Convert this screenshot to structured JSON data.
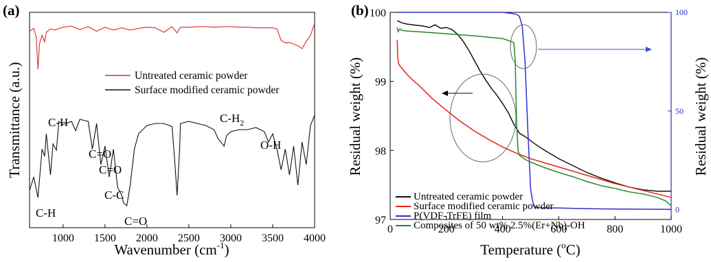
{
  "chart_data": [
    {
      "type": "line",
      "panel_label": "(a)",
      "xlabel_main": "Wavenumber (cm",
      "xlabel_sup": "-1",
      "xlabel_tail": ")",
      "ylabel": "Transmittance (a.u.)",
      "xlim": [
        600,
        4000
      ],
      "xticks": [
        "1000",
        "1500",
        "2000",
        "2500",
        "3000",
        "3500",
        "4000"
      ],
      "xtick_values": [
        1000,
        1500,
        2000,
        2500,
        3000,
        3500,
        4000
      ],
      "legend": [
        {
          "name": "Untreated ceramic powder",
          "color": "#e0282a"
        },
        {
          "name": "Surface modified ceramic powder",
          "color": "#111111"
        }
      ],
      "annotations": [
        {
          "text": "C-H",
          "x": 700
        },
        {
          "text": "C-H",
          "x": 880
        },
        {
          "text": "C=O",
          "x": 1390
        },
        {
          "text": "C=O",
          "x": 1500
        },
        {
          "text": "C-C",
          "x": 1620
        },
        {
          "text": "C=O",
          "x": 1760
        },
        {
          "text": "C-H",
          "x": 2920,
          "sub": "2"
        },
        {
          "text": "O-H",
          "x": 3450
        }
      ],
      "series": [
        {
          "name": "Untreated ceramic powder",
          "color": "#e0282a",
          "x": [
            600,
            650,
            680,
            700,
            720,
            750,
            780,
            800,
            850,
            900,
            1000,
            1100,
            1200,
            1300,
            1400,
            1500,
            1600,
            1700,
            1800,
            1900,
            2000,
            2100,
            2200,
            2300,
            2360,
            2400,
            2500,
            2600,
            2700,
            2800,
            2900,
            3000,
            3100,
            3200,
            3300,
            3400,
            3500,
            3550,
            3600,
            3650,
            3700,
            3800,
            3850,
            3900,
            3950,
            4000
          ],
          "y": [
            0.86,
            0.91,
            0.75,
            0.18,
            0.64,
            0.79,
            0.67,
            0.84,
            0.9,
            0.88,
            0.93,
            0.95,
            0.89,
            0.94,
            0.86,
            0.93,
            0.88,
            0.92,
            0.88,
            0.91,
            0.93,
            0.92,
            0.84,
            0.94,
            0.83,
            0.93,
            0.93,
            0.94,
            0.94,
            0.93,
            0.94,
            0.94,
            0.93,
            0.93,
            0.92,
            0.92,
            0.92,
            0.9,
            0.7,
            0.65,
            0.66,
            0.6,
            0.55,
            0.68,
            0.78,
            1.0
          ]
        },
        {
          "name": "Surface modified ceramic powder",
          "color": "#111111",
          "x": [
            600,
            650,
            700,
            750,
            780,
            800,
            850,
            880,
            920,
            950,
            1000,
            1100,
            1150,
            1200,
            1300,
            1350,
            1400,
            1450,
            1500,
            1550,
            1600,
            1650,
            1700,
            1720,
            1760,
            1800,
            1850,
            1900,
            2000,
            2100,
            2200,
            2300,
            2330,
            2360,
            2390,
            2400,
            2500,
            2600,
            2700,
            2800,
            2850,
            2920,
            2950,
            3000,
            3100,
            3200,
            3300,
            3400,
            3450,
            3500,
            3550,
            3600,
            3650,
            3700,
            3750,
            3800,
            3850,
            3900,
            3950,
            4000
          ],
          "y": [
            0.15,
            0.28,
            0.08,
            0.55,
            0.48,
            0.7,
            0.3,
            0.6,
            0.54,
            0.82,
            0.79,
            0.82,
            0.73,
            0.84,
            0.82,
            0.55,
            0.8,
            0.4,
            0.58,
            0.28,
            0.55,
            0.18,
            0.1,
            0.03,
            0.0,
            0.2,
            0.55,
            0.7,
            0.78,
            0.8,
            0.8,
            0.77,
            0.45,
            0.1,
            0.55,
            0.8,
            0.82,
            0.8,
            0.78,
            0.74,
            0.65,
            0.58,
            0.68,
            0.72,
            0.74,
            0.74,
            0.76,
            0.72,
            0.62,
            0.7,
            0.55,
            0.35,
            0.55,
            0.3,
            0.58,
            0.2,
            0.62,
            0.4,
            0.78,
            0.88
          ]
        }
      ]
    },
    {
      "type": "line",
      "panel_label": "(b)",
      "xlabel_main": "Temperature (",
      "xlabel_sup": "o",
      "xlabel_tail": "C)",
      "ylabel": "Residual weight (%)",
      "ylabel_right": "Residual weight (%)",
      "xlim": [
        0,
        1000
      ],
      "ylim": [
        97,
        100
      ],
      "ylim_right": [
        -5,
        100
      ],
      "xticks": [
        "0",
        "200",
        "400",
        "600",
        "800",
        "1000"
      ],
      "xtick_values": [
        0,
        200,
        400,
        600,
        800,
        1000
      ],
      "yticks": [
        "97",
        "98",
        "99",
        "100"
      ],
      "ytick_values": [
        97,
        98,
        99,
        100
      ],
      "yticks_right": [
        "0",
        "50",
        "100"
      ],
      "ytick_values_right": [
        0,
        50,
        100
      ],
      "left_axis_color": "#000000",
      "right_axis_color": "#2a2fb5",
      "legend_position": "bottom-left",
      "legend": [
        {
          "name": "Untreated ceramic powder",
          "color": "#111111"
        },
        {
          "name": "Surface modified ceramic powder",
          "color": "#e8221c"
        },
        {
          "name": "P(VDF-TrFE) film",
          "color": "#2f2fc8"
        },
        {
          "name": "Composites of 50 wt% 2.5%(Er+Nb)-OH",
          "color": "#22882a"
        }
      ],
      "series": [
        {
          "name": "Untreated ceramic powder",
          "color": "#111111",
          "axis": "left",
          "x": [
            25,
            40,
            60,
            80,
            100,
            120,
            140,
            160,
            180,
            200,
            220,
            240,
            260,
            280,
            300,
            320,
            340,
            360,
            380,
            400,
            420,
            440,
            460,
            480,
            500,
            520,
            550,
            600,
            650,
            700,
            750,
            800,
            850,
            900,
            950,
            1000
          ],
          "y": [
            99.88,
            99.85,
            99.83,
            99.82,
            99.81,
            99.8,
            99.78,
            99.82,
            99.77,
            99.78,
            99.75,
            99.68,
            99.58,
            99.45,
            99.3,
            99.15,
            99.02,
            98.9,
            98.8,
            98.68,
            98.55,
            98.38,
            98.25,
            98.2,
            98.14,
            98.08,
            98.0,
            97.88,
            97.78,
            97.68,
            97.6,
            97.53,
            97.47,
            97.43,
            97.41,
            97.41
          ]
        },
        {
          "name": "Surface modified ceramic powder",
          "color": "#e8221c",
          "axis": "left",
          "x": [
            25,
            27,
            30,
            35,
            40,
            50,
            60,
            80,
            100,
            150,
            200,
            250,
            300,
            350,
            400,
            450,
            500,
            550,
            600,
            650,
            700,
            750,
            800,
            850,
            900,
            950,
            1000
          ],
          "y": [
            99.6,
            99.35,
            99.25,
            99.22,
            99.2,
            99.15,
            99.1,
            99.02,
            98.95,
            98.75,
            98.58,
            98.42,
            98.28,
            98.16,
            98.05,
            97.96,
            97.88,
            97.82,
            97.76,
            97.7,
            97.64,
            97.58,
            97.52,
            97.47,
            97.42,
            97.37,
            97.32
          ]
        },
        {
          "name": "P(VDF-TrFE) film",
          "color": "#2f2fc8",
          "axis": "right",
          "x": [
            25,
            100,
            200,
            300,
            400,
            430,
            450,
            460,
            470,
            480,
            490,
            500,
            510,
            520,
            600,
            700,
            800,
            900,
            1000
          ],
          "y": [
            100,
            100,
            100,
            100,
            100,
            99.5,
            99,
            98,
            93,
            75,
            40,
            10,
            2,
            1,
            0.8,
            0.5,
            0.3,
            0.2,
            0.1
          ]
        },
        {
          "name": "Composites of 50 wt% 2.5%(Er+Nb)-OH",
          "color": "#22882a",
          "axis": "left",
          "x": [
            25,
            28,
            35,
            40,
            60,
            100,
            200,
            300,
            400,
            430,
            440,
            445,
            450,
            455,
            460,
            470,
            480,
            500,
            550,
            600,
            650,
            700,
            750,
            800,
            850,
            900,
            950,
            980,
            1000
          ],
          "y": [
            99.78,
            99.72,
            99.76,
            99.74,
            99.73,
            99.72,
            99.69,
            99.66,
            99.62,
            99.58,
            99.56,
            99.3,
            98.4,
            98.0,
            97.93,
            97.9,
            97.87,
            97.83,
            97.75,
            97.68,
            97.62,
            97.55,
            97.49,
            97.45,
            97.4,
            97.37,
            97.32,
            97.27,
            97.2
          ]
        }
      ],
      "annotations": [
        {
          "type": "ellipse",
          "cx": 340,
          "cy": 98.85,
          "note": "circle around left-axis curves"
        },
        {
          "type": "ellipse",
          "cx": 470,
          "cy": 99.62,
          "note": "circle around right-axis curve"
        },
        {
          "type": "arrow",
          "direction": "left",
          "color": "#000000"
        },
        {
          "type": "arrow",
          "direction": "right",
          "color": "#3f4fc8"
        }
      ]
    }
  ]
}
